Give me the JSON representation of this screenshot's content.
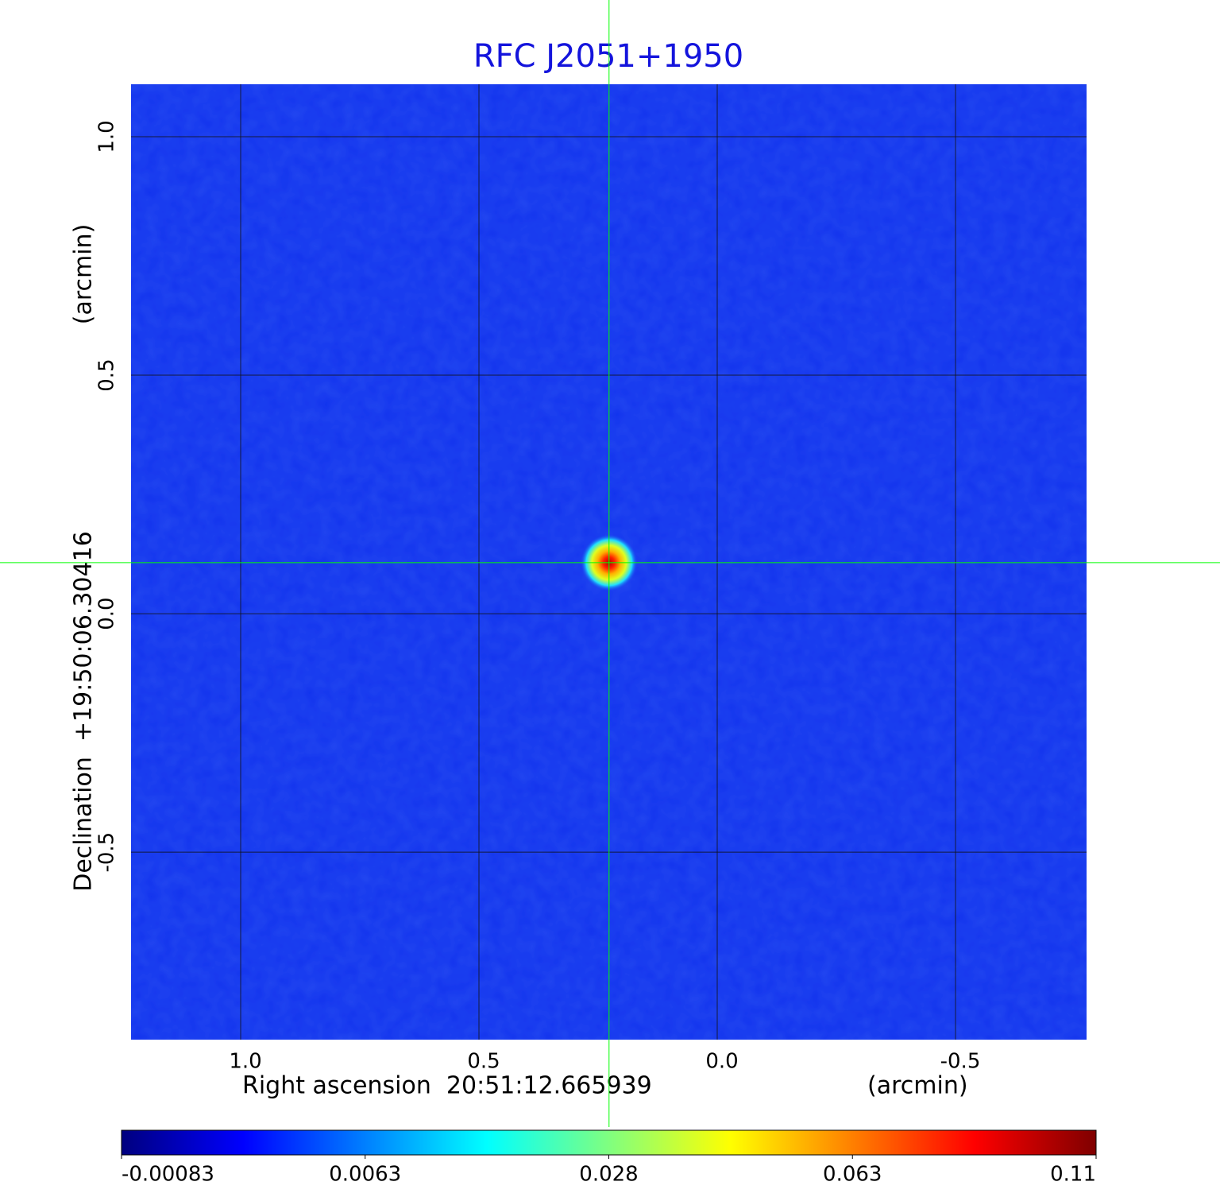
{
  "chart_data": {
    "type": "image",
    "title": "RFC J2051+1950",
    "xlabel": "Right ascension  20:51:12.665939",
    "xunit": "(arcmin)",
    "ylabel": "Declination  +19:50:06.30416",
    "yunit": "(arcmin)",
    "xlim": [
      1.23,
      -0.775
    ],
    "ylim": [
      -0.893,
      1.11
    ],
    "xticks": [
      {
        "value": 1,
        "label": "1.0"
      },
      0.5,
      {
        "value": 0,
        "label": "0.0"
      },
      -0.5
    ],
    "yticks": [
      {
        "value": 1,
        "label": "1.0"
      },
      0.5,
      {
        "value": 0,
        "label": "0.0"
      },
      -0.5
    ],
    "grid": true,
    "crosshair": {
      "x": 0.227,
      "y": 0.107,
      "color": "#00ff00"
    },
    "colorbar": {
      "colormap": "jet",
      "ticks": [
        -0.00083,
        0.0063,
        0.028,
        0.063,
        0.11
      ]
    }
  }
}
